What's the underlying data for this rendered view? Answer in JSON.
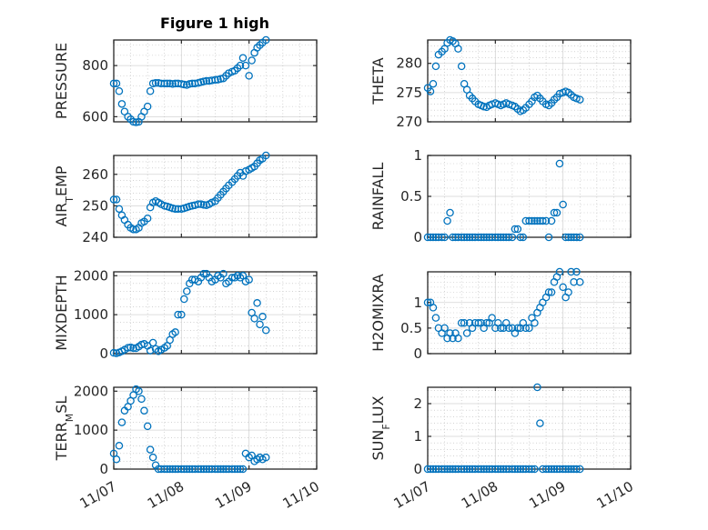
{
  "figure_title": "Figure 1 high",
  "colors": {
    "marker": "#0072BD",
    "axis": "#262626",
    "grid": "#b0b0b0"
  },
  "chart_data": [
    {
      "type": "scatter",
      "ylabel": "PRESSURE",
      "ylim": [
        580,
        900
      ],
      "yticks": [
        600,
        800
      ],
      "ytick_labels": [
        "600",
        "800"
      ],
      "xlim": [
        0,
        3
      ],
      "xticks": [
        0,
        1,
        2,
        3
      ],
      "xtick_labels": [
        "11/07",
        "11/08",
        "11/09",
        "11/10"
      ],
      "show_xtick_labels": false,
      "grid": true,
      "x": [
        0.0,
        0.04,
        0.08,
        0.12,
        0.16,
        0.21,
        0.25,
        0.29,
        0.33,
        0.37,
        0.41,
        0.45,
        0.5,
        0.54,
        0.58,
        0.62,
        0.66,
        0.7,
        0.75,
        0.79,
        0.83,
        0.87,
        0.91,
        0.95,
        1.0,
        1.04,
        1.08,
        1.12,
        1.16,
        1.2,
        1.25,
        1.29,
        1.33,
        1.37,
        1.41,
        1.45,
        1.5,
        1.54,
        1.58,
        1.62,
        1.66,
        1.7,
        1.75,
        1.79,
        1.83,
        1.87,
        1.91,
        1.95,
        2.0,
        2.04,
        2.08,
        2.12,
        2.16,
        2.2,
        2.25
      ],
      "y": [
        730,
        730,
        700,
        650,
        620,
        600,
        590,
        580,
        578,
        580,
        600,
        620,
        640,
        700,
        730,
        732,
        732,
        730,
        730,
        730,
        730,
        728,
        730,
        730,
        728,
        726,
        724,
        728,
        730,
        730,
        732,
        735,
        738,
        740,
        740,
        742,
        744,
        745,
        748,
        750,
        760,
        770,
        776,
        780,
        790,
        800,
        830,
        800,
        760,
        820,
        850,
        870,
        880,
        890,
        900
      ]
    },
    {
      "type": "scatter",
      "ylabel": "THETA",
      "ylim": [
        270,
        284
      ],
      "yticks": [
        270,
        275,
        280
      ],
      "ytick_labels": [
        "270",
        "275",
        "280"
      ],
      "xlim": [
        0,
        3
      ],
      "xticks": [
        0,
        1,
        2,
        3
      ],
      "xtick_labels": [
        "11/07",
        "11/08",
        "11/09",
        "11/10"
      ],
      "show_xtick_labels": false,
      "grid": true,
      "x": [
        0.0,
        0.04,
        0.08,
        0.12,
        0.16,
        0.21,
        0.25,
        0.29,
        0.33,
        0.37,
        0.41,
        0.45,
        0.5,
        0.54,
        0.58,
        0.62,
        0.66,
        0.7,
        0.75,
        0.79,
        0.83,
        0.87,
        0.91,
        0.95,
        1.0,
        1.04,
        1.08,
        1.12,
        1.16,
        1.2,
        1.25,
        1.29,
        1.33,
        1.37,
        1.41,
        1.45,
        1.5,
        1.54,
        1.58,
        1.62,
        1.66,
        1.7,
        1.75,
        1.79,
        1.83,
        1.87,
        1.91,
        1.95,
        2.0,
        2.04,
        2.08,
        2.12,
        2.16,
        2.2,
        2.25
      ],
      "y": [
        275.8,
        275.2,
        276.5,
        279.5,
        281.5,
        282,
        282.5,
        283.5,
        284,
        283.8,
        283.4,
        282.5,
        279.5,
        276.5,
        275.5,
        274.5,
        274,
        273.5,
        273,
        272.8,
        272.6,
        272.5,
        272.8,
        273,
        273.2,
        273,
        272.8,
        273,
        273.2,
        273,
        272.8,
        272.6,
        272.2,
        271.8,
        272,
        272.4,
        273,
        273.5,
        274.2,
        274.5,
        274,
        273.5,
        273,
        272.8,
        273.2,
        273.8,
        274.2,
        274.8,
        275,
        275.2,
        275,
        274.6,
        274.2,
        274,
        273.8
      ]
    },
    {
      "type": "scatter",
      "ylabel": "AIR_TEMP",
      "ylim": [
        240,
        266
      ],
      "yticks": [
        240,
        250,
        260
      ],
      "ytick_labels": [
        "240",
        "250",
        "260"
      ],
      "xlim": [
        0,
        3
      ],
      "xticks": [
        0,
        1,
        2,
        3
      ],
      "xtick_labels": [
        "11/07",
        "11/08",
        "11/09",
        "11/10"
      ],
      "show_xtick_labels": false,
      "grid": true,
      "x": [
        0.0,
        0.04,
        0.08,
        0.12,
        0.16,
        0.21,
        0.25,
        0.29,
        0.33,
        0.37,
        0.41,
        0.45,
        0.5,
        0.54,
        0.58,
        0.62,
        0.66,
        0.7,
        0.75,
        0.79,
        0.83,
        0.87,
        0.91,
        0.95,
        1.0,
        1.04,
        1.08,
        1.12,
        1.16,
        1.2,
        1.25,
        1.29,
        1.33,
        1.37,
        1.41,
        1.45,
        1.5,
        1.54,
        1.58,
        1.62,
        1.66,
        1.7,
        1.75,
        1.79,
        1.83,
        1.87,
        1.91,
        1.95,
        2.0,
        2.04,
        2.08,
        2.12,
        2.16,
        2.2,
        2.25
      ],
      "y": [
        252,
        252,
        249,
        247,
        245.5,
        244,
        243,
        242.5,
        242.5,
        243,
        244.5,
        245,
        246,
        249.5,
        251,
        251.5,
        251,
        250.5,
        250,
        249.8,
        249.5,
        249.2,
        249,
        249,
        249,
        249.2,
        249.5,
        249.8,
        250,
        250.2,
        250.5,
        250.5,
        250.3,
        250.2,
        250.5,
        251,
        251.5,
        252.5,
        253.5,
        254.5,
        255.5,
        256.5,
        257.5,
        258.5,
        259.5,
        260.5,
        259.5,
        261,
        261.5,
        262,
        262.5,
        263.5,
        264.5,
        265,
        266
      ]
    },
    {
      "type": "scatter",
      "ylabel": "RAINFALL",
      "ylim": [
        0,
        1
      ],
      "yticks": [
        0,
        0.5,
        1
      ],
      "ytick_labels": [
        "0",
        "0.5",
        "1"
      ],
      "xlim": [
        0,
        3
      ],
      "xticks": [
        0,
        1,
        2,
        3
      ],
      "xtick_labels": [
        "11/07",
        "11/08",
        "11/09",
        "11/10"
      ],
      "show_xtick_labels": false,
      "grid": true,
      "x": [
        0.0,
        0.04,
        0.08,
        0.12,
        0.16,
        0.21,
        0.25,
        0.29,
        0.33,
        0.37,
        0.41,
        0.45,
        0.5,
        0.54,
        0.58,
        0.62,
        0.66,
        0.7,
        0.75,
        0.79,
        0.83,
        0.87,
        0.91,
        0.95,
        1.0,
        1.04,
        1.08,
        1.12,
        1.16,
        1.2,
        1.25,
        1.29,
        1.33,
        1.37,
        1.41,
        1.45,
        1.5,
        1.54,
        1.58,
        1.62,
        1.66,
        1.7,
        1.75,
        1.79,
        1.83,
        1.87,
        1.91,
        1.95,
        2.0,
        2.04,
        2.08,
        2.12,
        2.16,
        2.2,
        2.25
      ],
      "y": [
        0,
        0,
        0,
        0,
        0,
        0,
        0,
        0.2,
        0.3,
        0,
        0,
        0,
        0,
        0,
        0,
        0,
        0,
        0,
        0,
        0,
        0,
        0,
        0,
        0,
        0,
        0,
        0,
        0,
        0,
        0,
        0,
        0.1,
        0.1,
        0,
        0,
        0.2,
        0.2,
        0.2,
        0.2,
        0.2,
        0.2,
        0.2,
        0.2,
        0,
        0.2,
        0.3,
        0.3,
        0.9,
        0.4,
        0,
        0,
        0,
        0,
        0,
        0
      ]
    },
    {
      "type": "scatter",
      "ylabel": "MIXDEPTH",
      "ylim": [
        0,
        2100
      ],
      "yticks": [
        0,
        1000,
        2000
      ],
      "ytick_labels": [
        "0",
        "1000",
        "2000"
      ],
      "xlim": [
        0,
        3
      ],
      "xticks": [
        0,
        1,
        2,
        3
      ],
      "xtick_labels": [
        "11/07",
        "11/08",
        "11/09",
        "11/10"
      ],
      "show_xtick_labels": false,
      "grid": true,
      "x": [
        0.0,
        0.04,
        0.08,
        0.12,
        0.16,
        0.21,
        0.25,
        0.29,
        0.33,
        0.37,
        0.41,
        0.45,
        0.5,
        0.54,
        0.58,
        0.62,
        0.66,
        0.7,
        0.75,
        0.79,
        0.83,
        0.87,
        0.91,
        0.95,
        1.0,
        1.04,
        1.08,
        1.12,
        1.16,
        1.2,
        1.25,
        1.29,
        1.33,
        1.37,
        1.41,
        1.45,
        1.5,
        1.54,
        1.58,
        1.62,
        1.66,
        1.7,
        1.75,
        1.79,
        1.83,
        1.87,
        1.91,
        1.95,
        2.0,
        2.04,
        2.08,
        2.12,
        2.16,
        2.2,
        2.25
      ],
      "y": [
        20,
        10,
        30,
        60,
        100,
        150,
        160,
        140,
        140,
        180,
        230,
        250,
        200,
        80,
        280,
        120,
        60,
        100,
        150,
        200,
        350,
        500,
        550,
        1000,
        1000,
        1400,
        1600,
        1800,
        1900,
        1900,
        1850,
        1950,
        2050,
        2050,
        1950,
        1850,
        1900,
        2000,
        1950,
        2050,
        1800,
        1850,
        1950,
        1950,
        2000,
        1950,
        2000,
        1850,
        1900,
        1050,
        900,
        1300,
        750,
        950,
        600
      ]
    },
    {
      "type": "scatter",
      "ylabel": "H2OMIXRA",
      "ylim": [
        0,
        1.6
      ],
      "yticks": [
        0,
        0.5,
        1
      ],
      "ytick_labels": [
        "0",
        "0.5",
        "1"
      ],
      "xlim": [
        0,
        3
      ],
      "xticks": [
        0,
        1,
        2,
        3
      ],
      "xtick_labels": [
        "11/07",
        "11/08",
        "11/09",
        "11/10"
      ],
      "show_xtick_labels": false,
      "grid": true,
      "x": [
        0.0,
        0.04,
        0.08,
        0.12,
        0.16,
        0.21,
        0.25,
        0.29,
        0.33,
        0.37,
        0.41,
        0.45,
        0.5,
        0.54,
        0.58,
        0.62,
        0.66,
        0.7,
        0.75,
        0.79,
        0.83,
        0.87,
        0.91,
        0.95,
        1.0,
        1.04,
        1.08,
        1.12,
        1.16,
        1.2,
        1.25,
        1.29,
        1.33,
        1.37,
        1.41,
        1.45,
        1.5,
        1.54,
        1.58,
        1.62,
        1.66,
        1.7,
        1.75,
        1.79,
        1.83,
        1.87,
        1.91,
        1.95,
        2.0,
        2.04,
        2.08,
        2.12,
        2.16,
        2.2,
        2.25
      ],
      "y": [
        1,
        1,
        0.9,
        0.7,
        0.5,
        0.4,
        0.5,
        0.3,
        0.4,
        0.3,
        0.4,
        0.3,
        0.6,
        0.6,
        0.4,
        0.6,
        0.5,
        0.6,
        0.6,
        0.6,
        0.5,
        0.6,
        0.6,
        0.7,
        0.5,
        0.6,
        0.5,
        0.5,
        0.6,
        0.5,
        0.5,
        0.4,
        0.5,
        0.5,
        0.6,
        0.5,
        0.5,
        0.7,
        0.6,
        0.8,
        0.9,
        1,
        1.1,
        1.2,
        1.2,
        1.4,
        1.5,
        1.6,
        1.3,
        1.1,
        1.2,
        1.6,
        1.4,
        1.6,
        1.4
      ]
    },
    {
      "type": "scatter",
      "ylabel": "TERR_MSL",
      "ylim": [
        0,
        2100
      ],
      "yticks": [
        0,
        1000,
        2000
      ],
      "ytick_labels": [
        "0",
        "1000",
        "2000"
      ],
      "xlim": [
        0,
        3
      ],
      "xticks": [
        0,
        1,
        2,
        3
      ],
      "xtick_labels": [
        "11/07",
        "11/08",
        "11/09",
        "11/10"
      ],
      "show_xtick_labels": true,
      "grid": true,
      "x": [
        0.0,
        0.04,
        0.08,
        0.12,
        0.16,
        0.21,
        0.25,
        0.29,
        0.33,
        0.37,
        0.41,
        0.45,
        0.5,
        0.54,
        0.58,
        0.62,
        0.66,
        0.7,
        0.75,
        0.79,
        0.83,
        0.87,
        0.91,
        0.95,
        1.0,
        1.04,
        1.08,
        1.12,
        1.16,
        1.2,
        1.25,
        1.29,
        1.33,
        1.37,
        1.41,
        1.45,
        1.5,
        1.54,
        1.58,
        1.62,
        1.66,
        1.7,
        1.75,
        1.79,
        1.83,
        1.87,
        1.91,
        1.95,
        2.0,
        2.04,
        2.08,
        2.12,
        2.16,
        2.2,
        2.25
      ],
      "y": [
        400,
        250,
        600,
        1200,
        1500,
        1600,
        1750,
        1900,
        2050,
        2000,
        1800,
        1500,
        1100,
        500,
        300,
        100,
        0,
        0,
        0,
        0,
        0,
        0,
        0,
        0,
        0,
        0,
        0,
        0,
        0,
        0,
        0,
        0,
        0,
        0,
        0,
        0,
        0,
        0,
        0,
        0,
        0,
        0,
        0,
        0,
        0,
        0,
        0,
        400,
        300,
        350,
        200,
        250,
        300,
        250,
        300
      ]
    },
    {
      "type": "scatter",
      "ylabel": "SUN_FLUX",
      "ylim": [
        0,
        2.5
      ],
      "yticks": [
        0,
        1,
        2
      ],
      "ytick_labels": [
        "0",
        "1",
        "2"
      ],
      "xlim": [
        0,
        3
      ],
      "xticks": [
        0,
        1,
        2,
        3
      ],
      "xtick_labels": [
        "11/07",
        "11/08",
        "11/09",
        "11/10"
      ],
      "show_xtick_labels": true,
      "grid": true,
      "x": [
        0.0,
        0.04,
        0.08,
        0.12,
        0.16,
        0.21,
        0.25,
        0.29,
        0.33,
        0.37,
        0.41,
        0.45,
        0.5,
        0.54,
        0.58,
        0.62,
        0.66,
        0.7,
        0.75,
        0.79,
        0.83,
        0.87,
        0.91,
        0.95,
        1.0,
        1.04,
        1.08,
        1.12,
        1.16,
        1.2,
        1.25,
        1.29,
        1.33,
        1.37,
        1.41,
        1.45,
        1.5,
        1.54,
        1.58,
        1.62,
        1.66,
        1.7,
        1.75,
        1.79,
        1.83,
        1.87,
        1.91,
        1.95,
        2.0,
        2.04,
        2.08,
        2.12,
        2.16,
        2.2,
        2.25
      ],
      "y": [
        0,
        0,
        0,
        0,
        0,
        0,
        0,
        0,
        0,
        0,
        0,
        0,
        0,
        0,
        0,
        0,
        0,
        0,
        0,
        0,
        0,
        0,
        0,
        0,
        0,
        0,
        0,
        0,
        0,
        0,
        0,
        0,
        0,
        0,
        0,
        0,
        0,
        0,
        0,
        2.5,
        1.4,
        0,
        0,
        0,
        0,
        0,
        0,
        0,
        0,
        0,
        0,
        0,
        0,
        0,
        0
      ]
    }
  ]
}
